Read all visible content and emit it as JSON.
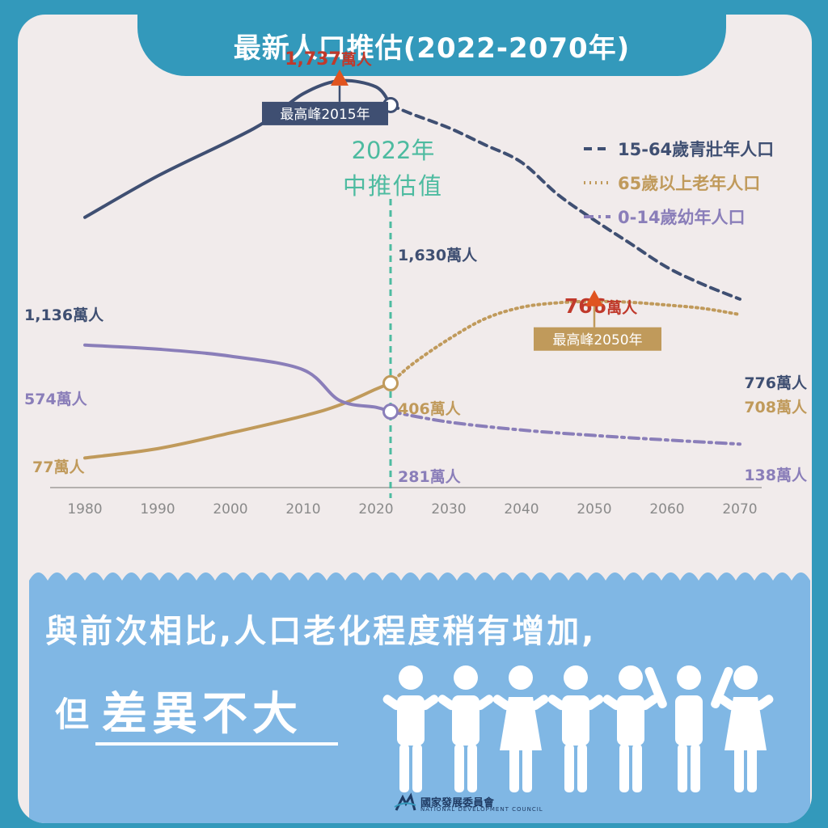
{
  "title": "最新人口推估(2022-2070年)",
  "divider_label_year": "2022年",
  "divider_label_text": "中推估值",
  "bottom": {
    "line1": "與前次相比,人口老化程度稍有增加,",
    "line2_prefix": "但",
    "line2_emphasis": "差異不大"
  },
  "logo_text": "國家發展委員會",
  "logo_subtext": "NATIONAL DEVELOPMENT COUNCIL",
  "colors": {
    "background": "#3399bb",
    "panel": "#f1ebeb",
    "working_age": "#3f4f72",
    "elderly": "#c09a5b",
    "children": "#8a7eb9",
    "divider": "#4dbba0",
    "peak_marker": "#e0541f",
    "peak_text": "#c0392b",
    "bottom_panel": "#80b7e4"
  },
  "chart_data": {
    "type": "line",
    "x_ticks": [
      1980,
      1990,
      2000,
      2010,
      2020,
      2030,
      2040,
      2050,
      2060,
      2070
    ],
    "xlim": [
      1980,
      2070
    ],
    "divider_year": 2022,
    "unit": "萬人",
    "legend": [
      "15-64歲青壯年人口",
      "65歲以上老年人口",
      "0-14歲幼年人口"
    ],
    "legend_position": "top-right",
    "series": [
      {
        "name": "15-64歲青壯年人口",
        "style": "dashed",
        "x": [
          1980,
          1990,
          2000,
          2005,
          2010,
          2015,
          2020,
          2022,
          2025,
          2030,
          2035,
          2040,
          2045,
          2050,
          2055,
          2060,
          2065,
          2070
        ],
        "y": [
          1136,
          1318,
          1474,
          1561,
          1680,
          1737,
          1710,
          1630,
          1590,
          1530,
          1455,
          1378,
          1236,
          1124,
          1020,
          916,
          840,
          776
        ]
      },
      {
        "name": "65歲以上老年人口",
        "style": "dotted",
        "x": [
          1980,
          1990,
          2000,
          2010,
          2015,
          2020,
          2022,
          2025,
          2030,
          2035,
          2040,
          2045,
          2050,
          2055,
          2060,
          2065,
          2070
        ],
        "y": [
          77,
          118,
          187,
          262,
          310,
          380,
          406,
          490,
          600,
          690,
          740,
          760,
          766,
          762,
          750,
          735,
          708
        ]
      },
      {
        "name": "0-14歲幼年人口",
        "style": "dash-dot",
        "x": [
          1980,
          1990,
          2000,
          2010,
          2015,
          2020,
          2022,
          2030,
          2040,
          2050,
          2060,
          2070
        ],
        "y": [
          574,
          556,
          525,
          465,
          330,
          300,
          281,
          235,
          200,
          176,
          156,
          138
        ]
      }
    ],
    "data_labels": [
      {
        "text": "1,136萬人",
        "x": 1980,
        "y": 1136,
        "series": "15-64歲青壯年人口"
      },
      {
        "text": "1,737",
        "unit": "萬人",
        "x": 2015,
        "y": 1737,
        "series": "15-64歲青壯年人口",
        "peak": true
      },
      {
        "text": "1,630萬人",
        "x": 2022,
        "y": 1630,
        "series": "15-64歲青壯年人口"
      },
      {
        "text": "776萬人",
        "x": 2070,
        "y": 776,
        "series": "15-64歲青壯年人口"
      },
      {
        "text": "77萬人",
        "x": 1980,
        "y": 77,
        "series": "65歲以上老年人口"
      },
      {
        "text": "406萬人",
        "x": 2022,
        "y": 406,
        "series": "65歲以上老年人口"
      },
      {
        "text": "766",
        "unit": "萬人",
        "x": 2050,
        "y": 766,
        "series": "65歲以上老年人口",
        "peak": true
      },
      {
        "text": "708萬人",
        "x": 2070,
        "y": 708,
        "series": "65歲以上老年人口"
      },
      {
        "text": "574萬人",
        "x": 1980,
        "y": 574,
        "series": "0-14歲幼年人口"
      },
      {
        "text": "281萬人",
        "x": 2022,
        "y": 281,
        "series": "0-14歲幼年人口"
      },
      {
        "text": "138萬人",
        "x": 2070,
        "y": 138,
        "series": "0-14歲幼年人口"
      }
    ],
    "annotations": [
      {
        "text": "最高峰2015年",
        "year": 2015,
        "series": "15-64歲青壯年人口"
      },
      {
        "text": "最高峰2050年",
        "year": 2050,
        "series": "65歲以上老年人口"
      }
    ]
  }
}
